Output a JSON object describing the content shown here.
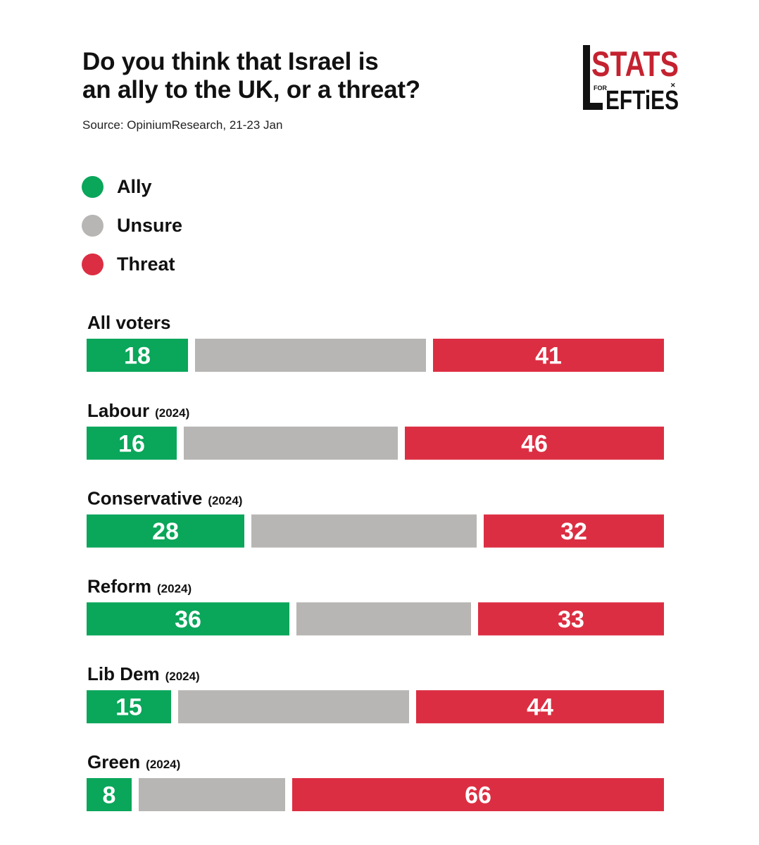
{
  "title_lines": [
    "Do you think that Israel is",
    "an ally to the UK, or a threat?"
  ],
  "source": "Source: OpiniumResearch, 21-23 Jan",
  "logo_text": {
    "top": "STATS",
    "for": "FOR",
    "bottom": "EFTiES"
  },
  "colors": {
    "ally": "#0aa65a",
    "unsure": "#b8b6b4",
    "threat": "#dc2e42",
    "text": "#111111",
    "bar_text": "#ffffff"
  },
  "legend": [
    {
      "label": "Ally",
      "color": "#0aa65a"
    },
    {
      "label": "Unsure",
      "color": "#b8b6b4"
    },
    {
      "label": "Threat",
      "color": "#dc2e42"
    }
  ],
  "chart_data": {
    "type": "bar",
    "orientation": "horizontal",
    "stacked": true,
    "categories": [
      {
        "name": "All voters",
        "suffix": ""
      },
      {
        "name": "Labour",
        "suffix": "(2024)"
      },
      {
        "name": "Conservative",
        "suffix": "(2024)"
      },
      {
        "name": "Reform",
        "suffix": "(2024)"
      },
      {
        "name": "Lib Dem",
        "suffix": "(2024)"
      },
      {
        "name": "Green",
        "suffix": "(2024)"
      }
    ],
    "series": [
      {
        "name": "Ally",
        "values": [
          18,
          16,
          28,
          36,
          15,
          8
        ],
        "color": "#0aa65a",
        "show_labels": true
      },
      {
        "name": "Unsure",
        "values": [
          41,
          38,
          40,
          31,
          41,
          26
        ],
        "color": "#b8b6b4",
        "show_labels": false
      },
      {
        "name": "Threat",
        "values": [
          41,
          46,
          32,
          33,
          44,
          66
        ],
        "color": "#dc2e42",
        "show_labels": true
      }
    ],
    "xlim": [
      0,
      100
    ],
    "legend_position": "top-left",
    "grid": false
  }
}
